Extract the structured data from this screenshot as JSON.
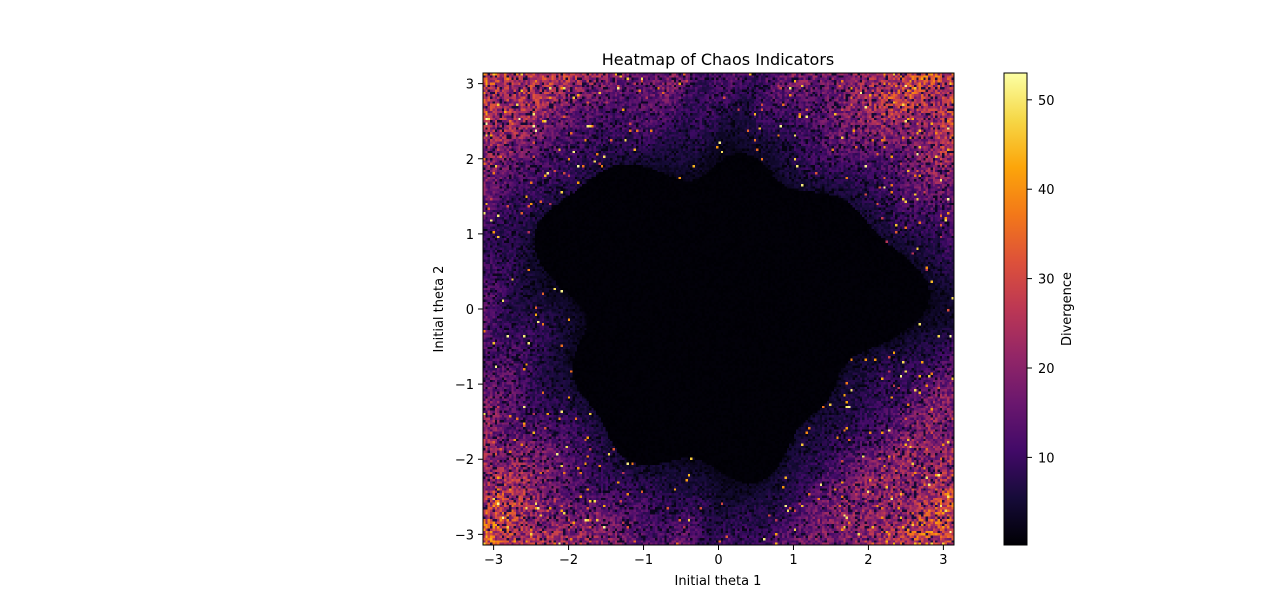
{
  "chart_data": {
    "type": "heatmap",
    "title": "Heatmap of Chaos Indicators",
    "xlabel": "Initial theta 1",
    "ylabel": "Initial theta 2",
    "xlim": [
      -3.14159,
      3.14159
    ],
    "ylim": [
      -3.14159,
      3.14159
    ],
    "x_ticks": [
      {
        "value": -3,
        "label": "−3"
      },
      {
        "value": -2,
        "label": "−2"
      },
      {
        "value": -1,
        "label": "−1"
      },
      {
        "value": 0,
        "label": "0"
      },
      {
        "value": 1,
        "label": "1"
      },
      {
        "value": 2,
        "label": "2"
      },
      {
        "value": 3,
        "label": "3"
      }
    ],
    "y_ticks": [
      {
        "value": -3,
        "label": "−3"
      },
      {
        "value": -2,
        "label": "−2"
      },
      {
        "value": -1,
        "label": "−1"
      },
      {
        "value": 0,
        "label": "0"
      },
      {
        "value": 1,
        "label": "1"
      },
      {
        "value": 2,
        "label": "2"
      },
      {
        "value": 3,
        "label": "3"
      }
    ],
    "grid": false,
    "colormap": "inferno",
    "colorbar": {
      "label": "Divergence",
      "range": [
        0.2,
        53
      ],
      "ticks": [
        {
          "value": 10,
          "label": "10"
        },
        {
          "value": 20,
          "label": "20"
        },
        {
          "value": 30,
          "label": "30"
        },
        {
          "value": 40,
          "label": "40"
        },
        {
          "value": 50,
          "label": "50"
        }
      ]
    },
    "description_of_field": {
      "resolution": 200,
      "low_divergence_core": "central stable region approximately theta1 in [-2.2, 2.2], theta2 in [-2.3, 2.2] with near-zero divergence",
      "high_divergence_corners": "corners near (|theta1|, |theta2|) = (3, 3) with values up to ~53",
      "typical_chaotic_values": [
        3,
        20
      ]
    }
  }
}
